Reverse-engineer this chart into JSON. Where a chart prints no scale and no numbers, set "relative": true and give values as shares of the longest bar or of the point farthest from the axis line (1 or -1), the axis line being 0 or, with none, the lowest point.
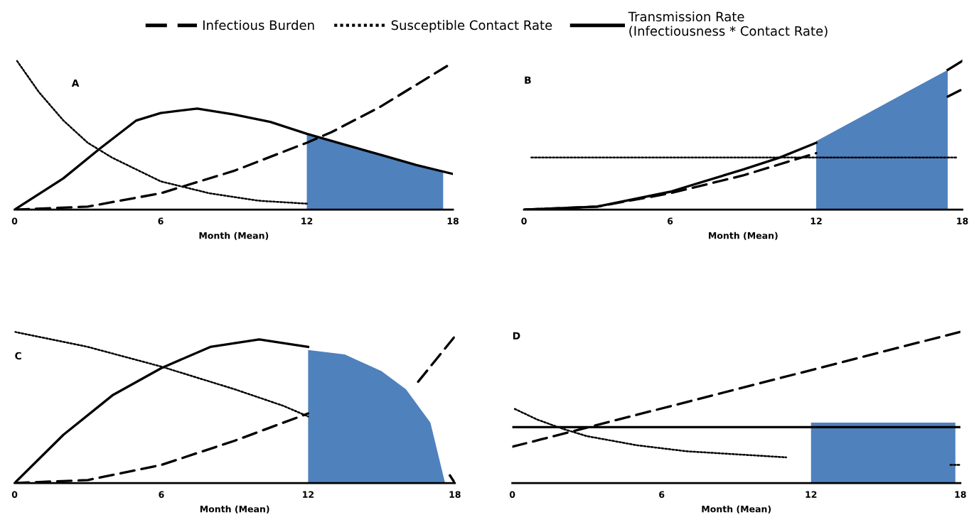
{
  "chart_data": [
    {
      "type": "line",
      "title": "A",
      "xlabel": "Month (Mean)",
      "relative": true,
      "xlim": [
        0,
        18
      ],
      "xticks": [
        0,
        6,
        12,
        18
      ],
      "grid": false,
      "legend": "top",
      "tick_labels": "x",
      "series": [
        {
          "name": "Infectious Burden",
          "color": "#000000",
          "line_style": "dashed",
          "x": [
            0,
            3,
            6,
            9,
            12,
            13,
            15,
            18
          ],
          "values": [
            0,
            0.02,
            0.11,
            0.26,
            0.45,
            0.52,
            0.69,
            0.99
          ]
        },
        {
          "name": "Susceptible Contact Rate",
          "color": "#000000",
          "line_style": "dotted",
          "x": [
            0.1,
            1,
            2,
            3,
            4,
            6,
            8,
            10,
            12
          ],
          "values": [
            1.0,
            0.79,
            0.6,
            0.45,
            0.35,
            0.19,
            0.11,
            0.06,
            0.04
          ]
        },
        {
          "name": "Transmission Rate\n(Infectiousness * Contact Rate)",
          "color": "#000000",
          "line_style": "solid",
          "x": [
            0,
            2,
            3.5,
            5,
            6,
            7.5,
            9,
            10.5,
            12,
            13.5,
            15,
            16.5,
            18
          ],
          "values": [
            0,
            0.21,
            0.41,
            0.6,
            0.65,
            0.68,
            0.64,
            0.59,
            0.51,
            0.44,
            0.37,
            0.3,
            0.24
          ]
        },
        {
          "type": "area",
          "color": "#4f81bd",
          "x": [
            12,
            14,
            16,
            17.6
          ],
          "values": [
            0.51,
            0.42,
            0.33,
            0.25
          ]
        }
      ]
    },
    {
      "type": "line",
      "title": "B",
      "xlabel": "Month (Mean)",
      "relative": true,
      "xlim": [
        0,
        18
      ],
      "xticks": [
        0,
        6,
        12,
        18
      ],
      "grid": false,
      "tick_labels": "x",
      "series": [
        {
          "color": "#000000",
          "line_style": "dashed",
          "x": [
            0,
            3,
            6,
            9,
            12,
            17.2,
            17.4,
            18
          ],
          "values": [
            0,
            0.02,
            0.11,
            0.23,
            0.38,
            null,
            0.76,
            0.81
          ]
        },
        {
          "color": "#000000",
          "line_style": "dotted",
          "x": [
            0.3,
            17.8
          ],
          "values": [
            0.35,
            0.35
          ]
        },
        {
          "color": "#000000",
          "line_style": "solid",
          "x": [
            0,
            3,
            6,
            9,
            10.5,
            12,
            17.2,
            17.4,
            18
          ],
          "values": [
            0,
            0.02,
            0.12,
            0.27,
            0.35,
            0.45,
            null,
            0.94,
            1.0
          ]
        },
        {
          "type": "area",
          "color": "#4f81bd",
          "x": [
            12,
            17.4
          ],
          "values": [
            0.46,
            0.94
          ]
        }
      ]
    },
    {
      "type": "line",
      "title": "C",
      "xlabel": "Month (Mean)",
      "relative": true,
      "xlim": [
        0,
        18
      ],
      "xticks": [
        0,
        6,
        12,
        18
      ],
      "grid": false,
      "tick_labels": "x",
      "series": [
        {
          "color": "#000000",
          "line_style": "dashed",
          "x": [
            0,
            3,
            6,
            9,
            12,
            14,
            16.5,
            18
          ],
          "values": [
            0,
            0.02,
            0.12,
            0.28,
            0.46,
            null,
            0.67,
            0.97
          ]
        },
        {
          "color": "#000000",
          "line_style": "dotted",
          "x": [
            0,
            3,
            6,
            9,
            11,
            12
          ],
          "values": [
            1.0,
            0.9,
            0.77,
            0.62,
            0.51,
            0.44
          ]
        },
        {
          "color": "#000000",
          "line_style": "solid",
          "x": [
            0,
            2,
            4,
            6,
            8,
            10,
            12,
            15,
            17.8,
            18
          ],
          "values": [
            0,
            0.32,
            0.58,
            0.76,
            0.9,
            0.95,
            0.9,
            null,
            0.05,
            0
          ]
        },
        {
          "type": "area",
          "color": "#4f81bd",
          "x": [
            12,
            13.5,
            15,
            16,
            17,
            17.6
          ],
          "values": [
            0.88,
            0.85,
            0.74,
            0.62,
            0.4,
            0
          ]
        }
      ]
    },
    {
      "type": "line",
      "title": "D",
      "xlabel": "Month (Mean)",
      "relative": true,
      "xlim": [
        0,
        18
      ],
      "xticks": [
        0,
        6,
        12,
        18
      ],
      "grid": false,
      "tick_labels": "x",
      "series": [
        {
          "color": "#000000",
          "line_style": "dashed",
          "x": [
            0,
            18
          ],
          "values": [
            0.24,
            1.0
          ]
        },
        {
          "color": "#000000",
          "line_style": "dotted",
          "x": [
            0.1,
            1,
            2,
            3,
            5,
            7,
            9,
            11,
            12,
            17.6,
            18
          ],
          "values": [
            0.49,
            0.42,
            0.36,
            0.31,
            0.25,
            0.21,
            0.19,
            0.17,
            null,
            0.12,
            0.12
          ]
        },
        {
          "color": "#000000",
          "line_style": "solid",
          "x": [
            0,
            18
          ],
          "values": [
            0.37,
            0.37
          ]
        },
        {
          "type": "area",
          "color": "#4f81bd",
          "x": [
            12,
            17.8
          ],
          "values": [
            0.4,
            0.4
          ]
        }
      ]
    }
  ]
}
